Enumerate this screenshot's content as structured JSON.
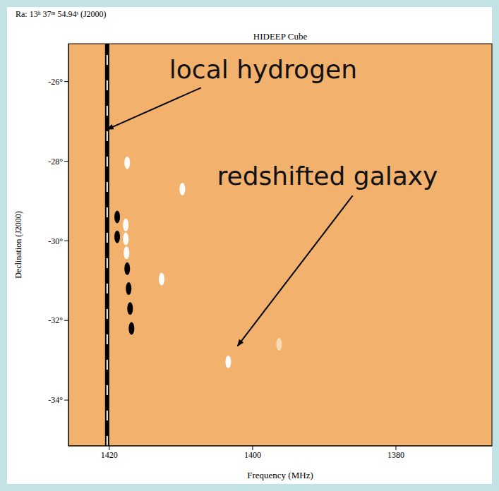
{
  "chart_data": {
    "type": "scatter",
    "title": "HIDEEP Cube",
    "subtitle": "Ra: 13ʰ 37ᵐ 54.94ˢ (J2000)",
    "x_label": "Frequency (MHz)",
    "y_label": "Declination (J2000)",
    "xlim": [
      1425.7,
      1366.6
    ],
    "xticks": [
      1420,
      1400,
      1380
    ],
    "ylim": [
      -35.15,
      -25.05
    ],
    "yticks": [
      {
        "value": -34,
        "label": "-34°"
      },
      {
        "value": -32,
        "label": "-32°"
      },
      {
        "value": -30,
        "label": "-30°"
      },
      {
        "value": -28,
        "label": "-28°"
      },
      {
        "value": -26,
        "label": "-26°"
      }
    ],
    "grid": false,
    "series": [
      {
        "type": "line",
        "color": "#000000",
        "line_style": "solid",
        "x": [
          1420.3,
          1420.3
        ],
        "values": [
          -35.15,
          -25.05
        ]
      },
      {
        "type": "scatter",
        "marker": "ellipse",
        "x": [
          1417.5,
          1417.7,
          1417.7,
          1417.6,
          1409.8,
          1412.7,
          1403.4,
          1396.3,
          1418.9,
          1418.9,
          1417.5,
          1417.3,
          1417.1,
          1416.9
        ],
        "values": [
          -28.04,
          -29.6,
          -29.95,
          -30.3,
          -28.7,
          -30.96,
          -33.04,
          -32.6,
          -29.4,
          -29.9,
          -30.7,
          -31.2,
          -31.7,
          -32.2
        ],
        "colors": [
          "#ffffff",
          "#ffffff",
          "#ffffff",
          "#ffffff",
          "#ffffff",
          "#ffffff",
          "#ffffff",
          "#f9dcb6",
          "#000000",
          "#000000",
          "#000000",
          "#000000",
          "#000000",
          "#000000"
        ]
      }
    ],
    "annotations": [
      {
        "text": "local hydrogen",
        "x": 1420.3,
        "y": -27.2
      },
      {
        "text": "redshifted galaxy",
        "x": 1402.1,
        "y": -32.64
      }
    ]
  }
}
